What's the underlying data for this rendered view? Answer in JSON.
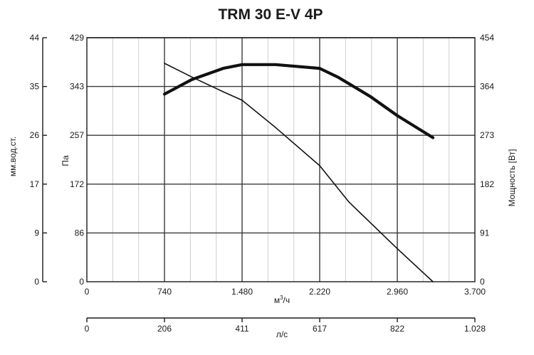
{
  "chart_data": {
    "type": "line",
    "title": "TRM 30 E-V 4P",
    "x_axis_m3h": {
      "label_prefix": "м",
      "label_sup": "3",
      "label_suffix": "/ч",
      "ticks": [
        "0",
        "740",
        "1.480",
        "2.220",
        "2.960",
        "3.700"
      ],
      "range": [
        0,
        3700
      ]
    },
    "x_axis_ls": {
      "label": "л/с",
      "ticks": [
        "0",
        "206",
        "411",
        "617",
        "822",
        "1.028"
      ]
    },
    "y_axis_pa": {
      "label": "Па",
      "ticks": [
        "0",
        "86",
        "172",
        "257",
        "343",
        "429"
      ],
      "range": [
        0,
        429
      ]
    },
    "y_axis_mmwc": {
      "label": "мм.вод.ст.",
      "ticks": [
        "0",
        "9",
        "17",
        "26",
        "35",
        "44"
      ]
    },
    "y_axis_power": {
      "label": "Мощность [Вт]",
      "ticks": [
        "0",
        "91",
        "182",
        "273",
        "364",
        "454"
      ],
      "range": [
        0,
        454
      ]
    },
    "grid": true,
    "series": [
      {
        "role": "pressure",
        "axis": "pa",
        "x": [
          740,
          1000,
          1300,
          1480,
          1800,
          2220,
          2500,
          2960,
          3300
        ],
        "y": [
          384,
          360,
          334,
          319,
          271,
          204,
          140,
          58,
          0
        ]
      },
      {
        "role": "power",
        "axis": "power",
        "x": [
          740,
          1000,
          1300,
          1480,
          1800,
          2220,
          2400,
          2700,
          2960,
          3300
        ],
        "y": [
          349,
          376,
          397,
          404,
          404,
          397,
          380,
          345,
          309,
          268
        ]
      }
    ]
  }
}
